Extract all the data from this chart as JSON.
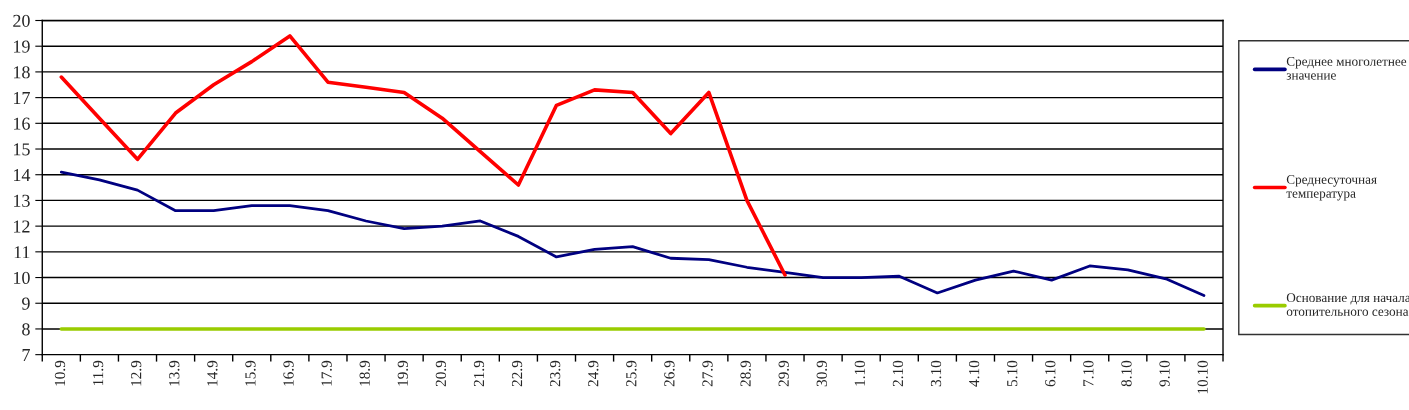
{
  "chart_data": {
    "type": "line",
    "categories": [
      "10.9",
      "11.9",
      "12.9",
      "13.9",
      "14.9",
      "15.9",
      "16.9",
      "17.9",
      "18.9",
      "19.9",
      "20.9",
      "21.9",
      "22.9",
      "23.9",
      "24.9",
      "25.9",
      "26.9",
      "27.9",
      "28.9",
      "29.9",
      "30.9",
      "1.10",
      "2.10",
      "3.10",
      "4.10",
      "5.10",
      "6.10",
      "7.10",
      "8.10",
      "9.10",
      "10.10"
    ],
    "series": [
      {
        "name": "Среднее многолетнее значение",
        "color": "#000080",
        "values": [
          14.1,
          13.8,
          13.4,
          12.6,
          12.6,
          12.8,
          12.8,
          12.6,
          12.2,
          11.9,
          12.0,
          12.2,
          11.6,
          10.8,
          11.1,
          11.2,
          10.75,
          10.7,
          10.4,
          10.2,
          10.0,
          10.0,
          10.05,
          9.4,
          9.9,
          10.25,
          9.9,
          10.45,
          10.3,
          9.95,
          9.3
        ]
      },
      {
        "name": "Среднесуточная температура",
        "color": "#ff0000",
        "values": [
          17.8,
          16.2,
          14.6,
          16.4,
          17.5,
          18.4,
          19.4,
          17.6,
          17.4,
          17.2,
          16.2,
          14.9,
          13.6,
          16.7,
          17.3,
          17.2,
          15.6,
          17.2,
          13.0,
          10.1,
          null,
          null,
          null,
          null,
          null,
          null,
          null,
          null,
          null,
          null,
          null
        ]
      },
      {
        "name": "Основание для начала отопительного сезона",
        "color": "#99cc00",
        "values": [
          8,
          8,
          8,
          8,
          8,
          8,
          8,
          8,
          8,
          8,
          8,
          8,
          8,
          8,
          8,
          8,
          8,
          8,
          8,
          8,
          8,
          8,
          8,
          8,
          8,
          8,
          8,
          8,
          8,
          8,
          8
        ]
      }
    ],
    "ylim": [
      7,
      20
    ],
    "yticks": [
      7,
      8,
      9,
      10,
      11,
      12,
      13,
      14,
      15,
      16,
      17,
      18,
      19,
      20
    ],
    "grid": "y",
    "legend": "right",
    "marker": "none",
    "line_style": "solid"
  }
}
